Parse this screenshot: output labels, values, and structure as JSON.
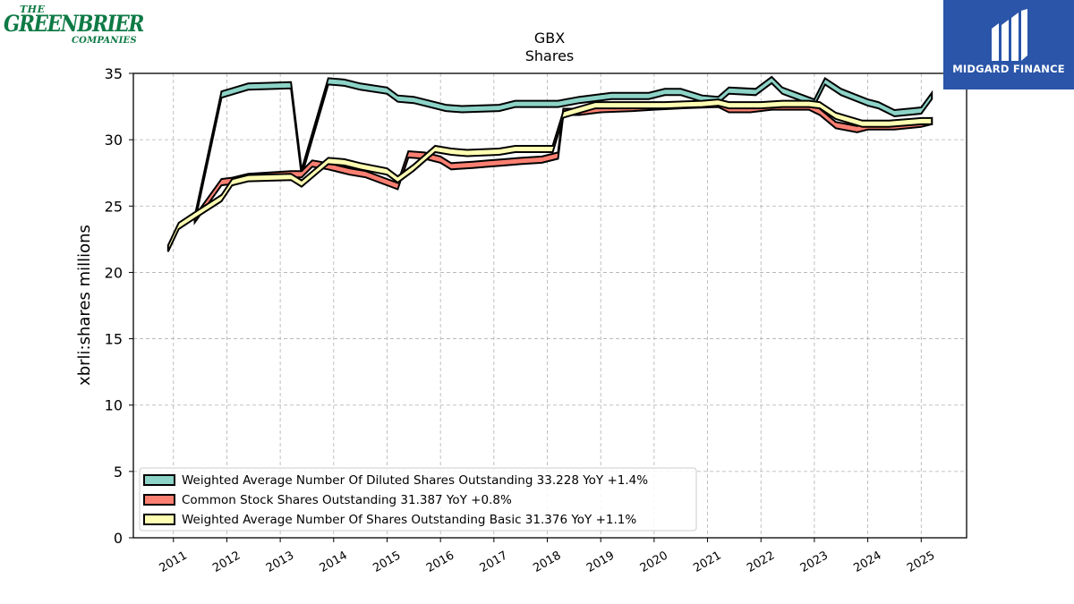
{
  "branding": {
    "left_logo": {
      "line1": "THE",
      "line2": "GREENBRIER",
      "line3": "COMPANIES",
      "color": "#0e7a45"
    },
    "right_logo": {
      "name": "MIDGARD FINANCE",
      "icon": "midgard-m-icon",
      "background": "#2a55a8"
    }
  },
  "chart_data": {
    "type": "line",
    "title": "GBX",
    "subtitle": "Shares",
    "xlabel": "",
    "ylabel": "xbrli:shares millions",
    "xlim": [
      2010.25,
      2025.85
    ],
    "ylim": [
      0,
      35
    ],
    "yticks": [
      0,
      5,
      10,
      15,
      20,
      25,
      30,
      35
    ],
    "xticks": [
      2011,
      2012,
      2013,
      2014,
      2015,
      2016,
      2017,
      2018,
      2019,
      2020,
      2021,
      2022,
      2023,
      2024,
      2025
    ],
    "xtick_labels": [
      "2011",
      "2012",
      "2013",
      "2014",
      "2015",
      "2016",
      "2017",
      "2018",
      "2019",
      "2020",
      "2021",
      "2022",
      "2023",
      "2024",
      "2025"
    ],
    "grid": true,
    "legend_position": "lower-left",
    "series": [
      {
        "name": "Weighted Average Number Of Diluted Shares Outstanding",
        "legend_label": "Weighted Average Number Of Diluted Shares Outstanding  33.228 YoY +1.4%",
        "color": "#8dd3c7",
        "points": [
          [
            2011.4,
            24.0
          ],
          [
            2011.9,
            33.4
          ],
          [
            2012.4,
            34.0
          ],
          [
            2013.2,
            34.1
          ],
          [
            2013.4,
            27.5
          ],
          [
            2013.9,
            34.4
          ],
          [
            2014.2,
            34.3
          ],
          [
            2014.5,
            34.0
          ],
          [
            2015.0,
            33.7
          ],
          [
            2015.2,
            33.1
          ],
          [
            2015.5,
            33.0
          ],
          [
            2016.1,
            32.4
          ],
          [
            2016.4,
            32.3
          ],
          [
            2017.1,
            32.4
          ],
          [
            2017.4,
            32.7
          ],
          [
            2018.2,
            32.7
          ],
          [
            2018.6,
            33.0
          ],
          [
            2019.2,
            33.3
          ],
          [
            2019.9,
            33.3
          ],
          [
            2020.2,
            33.6
          ],
          [
            2020.5,
            33.6
          ],
          [
            2020.9,
            33.1
          ],
          [
            2021.2,
            33.0
          ],
          [
            2021.4,
            33.7
          ],
          [
            2021.9,
            33.6
          ],
          [
            2022.2,
            34.5
          ],
          [
            2022.4,
            33.7
          ],
          [
            2023.0,
            32.8
          ],
          [
            2023.2,
            34.4
          ],
          [
            2023.5,
            33.6
          ],
          [
            2024.0,
            32.8
          ],
          [
            2024.2,
            32.6
          ],
          [
            2024.5,
            32.0
          ],
          [
            2025.0,
            32.2
          ],
          [
            2025.2,
            33.3
          ]
        ]
      },
      {
        "name": "Common Stock Shares Outstanding",
        "legend_label": "Common Stock Shares Outstanding  31.387 YoY +0.8%",
        "color": "#fb8072",
        "points": [
          [
            2011.4,
            24.0
          ],
          [
            2011.9,
            26.8
          ],
          [
            2012.1,
            26.9
          ],
          [
            2012.4,
            27.2
          ],
          [
            2013.2,
            27.4
          ],
          [
            2013.4,
            27.4
          ],
          [
            2013.6,
            28.2
          ],
          [
            2013.9,
            28.0
          ],
          [
            2014.3,
            27.6
          ],
          [
            2014.6,
            27.4
          ],
          [
            2015.2,
            26.5
          ],
          [
            2015.4,
            28.9
          ],
          [
            2015.7,
            28.8
          ],
          [
            2016.0,
            28.5
          ],
          [
            2016.2,
            28.0
          ],
          [
            2016.6,
            28.1
          ],
          [
            2016.9,
            28.2
          ],
          [
            2017.2,
            28.3
          ],
          [
            2017.5,
            28.4
          ],
          [
            2017.9,
            28.5
          ],
          [
            2018.2,
            28.8
          ],
          [
            2018.3,
            32.1
          ],
          [
            2018.6,
            32.1
          ],
          [
            2019.0,
            32.3
          ],
          [
            2019.6,
            32.4
          ],
          [
            2020.0,
            32.5
          ],
          [
            2020.5,
            32.6
          ],
          [
            2021.2,
            32.7
          ],
          [
            2021.4,
            32.3
          ],
          [
            2021.8,
            32.3
          ],
          [
            2022.2,
            32.5
          ],
          [
            2022.5,
            32.5
          ],
          [
            2022.9,
            32.5
          ],
          [
            2023.1,
            32.1
          ],
          [
            2023.4,
            31.1
          ],
          [
            2023.8,
            30.8
          ],
          [
            2024.0,
            31.0
          ],
          [
            2024.5,
            31.0
          ],
          [
            2025.0,
            31.2
          ],
          [
            2025.2,
            31.4
          ]
        ]
      },
      {
        "name": "Weighted Average Number Of Shares Outstanding Basic",
        "legend_label": "Weighted Average Number Of Shares Outstanding Basic  31.376 YoY +1.1%",
        "color": "#ffffb3",
        "points": [
          [
            2010.9,
            21.8
          ],
          [
            2011.1,
            23.5
          ],
          [
            2011.4,
            24.3
          ],
          [
            2011.9,
            25.6
          ],
          [
            2012.1,
            26.8
          ],
          [
            2012.4,
            27.1
          ],
          [
            2013.2,
            27.2
          ],
          [
            2013.4,
            26.7
          ],
          [
            2013.9,
            28.4
          ],
          [
            2014.2,
            28.3
          ],
          [
            2014.5,
            28.0
          ],
          [
            2015.0,
            27.6
          ],
          [
            2015.2,
            27.0
          ],
          [
            2015.5,
            27.9
          ],
          [
            2015.9,
            29.3
          ],
          [
            2016.2,
            29.1
          ],
          [
            2016.5,
            29.0
          ],
          [
            2017.1,
            29.1
          ],
          [
            2017.4,
            29.3
          ],
          [
            2018.1,
            29.3
          ],
          [
            2018.3,
            31.9
          ],
          [
            2018.9,
            32.6
          ],
          [
            2019.5,
            32.6
          ],
          [
            2020.2,
            32.6
          ],
          [
            2020.9,
            32.7
          ],
          [
            2021.2,
            32.8
          ],
          [
            2021.4,
            32.6
          ],
          [
            2022.0,
            32.6
          ],
          [
            2022.4,
            32.7
          ],
          [
            2022.9,
            32.7
          ],
          [
            2023.1,
            32.6
          ],
          [
            2023.4,
            31.8
          ],
          [
            2023.9,
            31.2
          ],
          [
            2024.4,
            31.2
          ],
          [
            2025.0,
            31.4
          ],
          [
            2025.2,
            31.4
          ]
        ]
      }
    ]
  }
}
